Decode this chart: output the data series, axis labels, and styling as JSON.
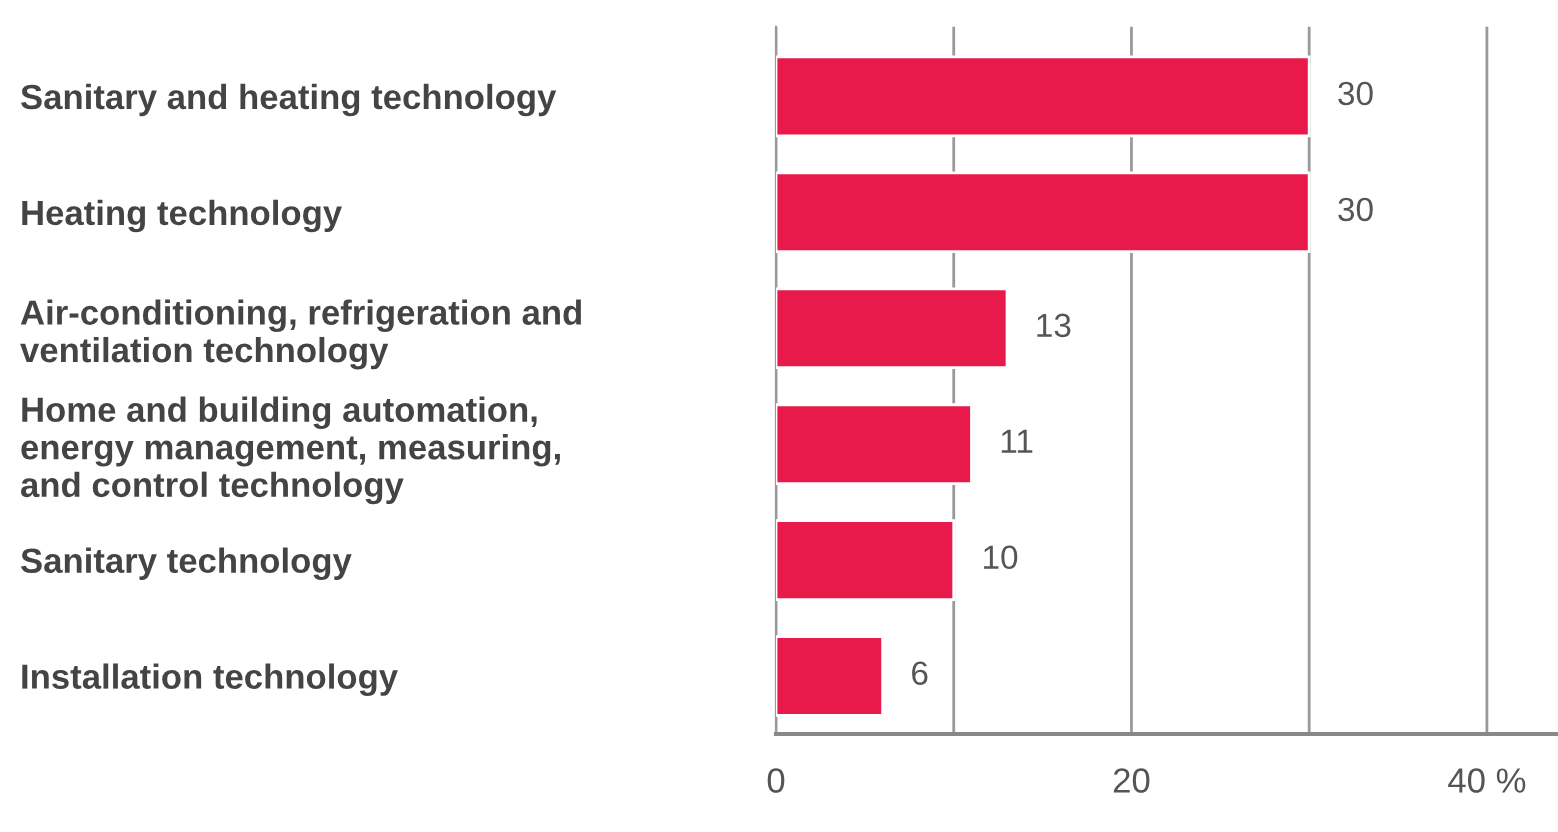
{
  "chart_data": {
    "type": "bar",
    "orientation": "horizontal",
    "categories": [
      "Sanitary and heating technology",
      "Heating technology",
      "Air-conditioning, refrigeration and\nventilation technology",
      "Home and building automation,\nenergy management, measuring,\nand control technology",
      "Sanitary technology",
      "Installation technology"
    ],
    "values": [
      30,
      30,
      13,
      11,
      10,
      6
    ],
    "color": "#e8194b",
    "xlim": [
      0,
      44
    ],
    "xticks": [
      0,
      {
        "value": 10,
        "label": null
      },
      20,
      {
        "value": 30,
        "label": null
      },
      {
        "value": 40,
        "label": "40 %"
      }
    ],
    "grid": "x",
    "data_labels": true
  }
}
